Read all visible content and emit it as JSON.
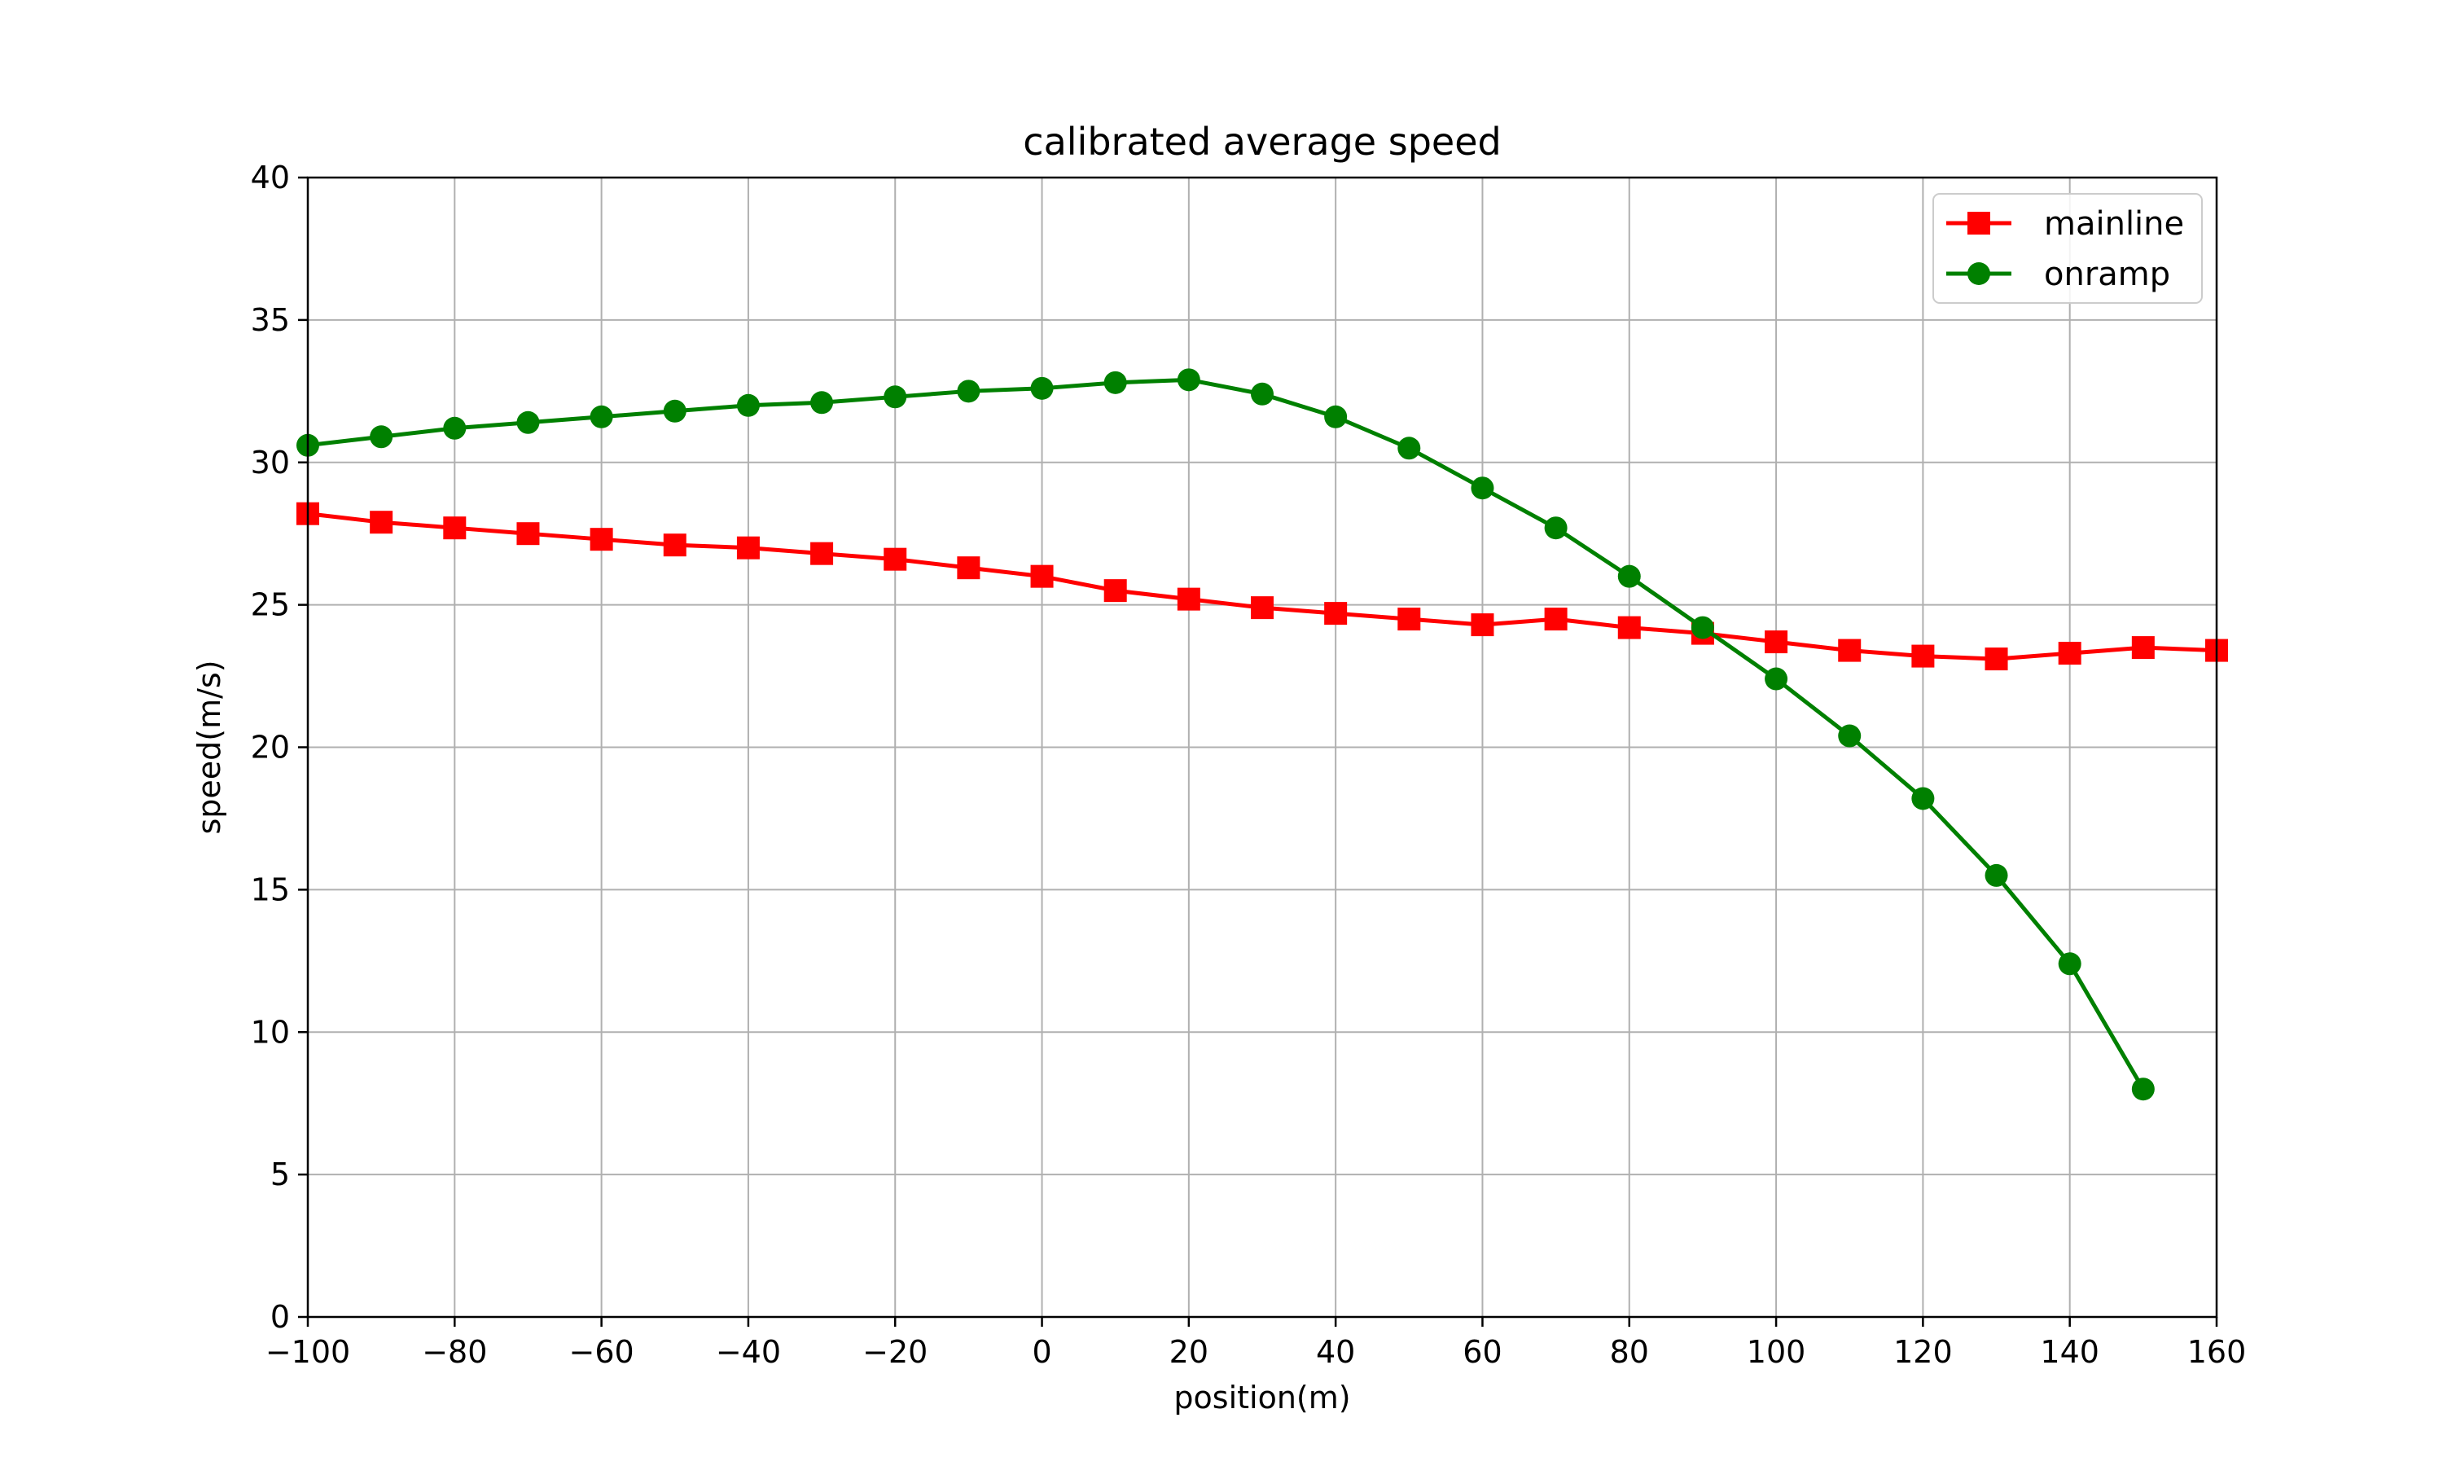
{
  "chart_data": {
    "type": "line",
    "title": "calibrated average speed",
    "xlabel": "position(m)",
    "ylabel": "speed(m/s)",
    "xlim": [
      -100,
      160
    ],
    "ylim": [
      0,
      40
    ],
    "xticks": [
      -100,
      -80,
      -60,
      -40,
      -20,
      0,
      20,
      40,
      60,
      80,
      100,
      120,
      140,
      160
    ],
    "xtick_labels": [
      "−100",
      "−80",
      "−60",
      "−40",
      "−20",
      "0",
      "20",
      "40",
      "60",
      "80",
      "100",
      "120",
      "140",
      "160"
    ],
    "yticks": [
      0,
      5,
      10,
      15,
      20,
      25,
      30,
      35,
      40
    ],
    "ytick_labels": [
      "0",
      "5",
      "10",
      "15",
      "20",
      "25",
      "30",
      "35",
      "40"
    ],
    "grid": true,
    "legend_position": "top-right",
    "series": [
      {
        "name": "mainline",
        "color": "#ff0000",
        "marker": "square",
        "x": [
          -100,
          -90,
          -80,
          -70,
          -60,
          -50,
          -40,
          -30,
          -20,
          -10,
          0,
          10,
          20,
          30,
          40,
          50,
          60,
          70,
          80,
          90,
          100,
          110,
          120,
          130,
          140,
          150,
          160
        ],
        "values": [
          28.2,
          27.9,
          27.7,
          27.5,
          27.3,
          27.1,
          27.0,
          26.8,
          26.6,
          26.3,
          26.0,
          25.5,
          25.2,
          24.9,
          24.7,
          24.5,
          24.3,
          24.5,
          24.2,
          24.0,
          23.7,
          23.4,
          23.2,
          23.1,
          23.3,
          23.5,
          23.4
        ]
      },
      {
        "name": "onramp",
        "color": "#008000",
        "marker": "circle",
        "x": [
          -100,
          -90,
          -80,
          -70,
          -60,
          -50,
          -40,
          -30,
          -20,
          -10,
          0,
          10,
          20,
          30,
          40,
          50,
          60,
          70,
          80,
          90,
          100,
          110,
          120,
          130,
          140,
          150
        ],
        "values": [
          30.6,
          30.9,
          31.2,
          31.4,
          31.6,
          31.8,
          32.0,
          32.1,
          32.3,
          32.5,
          32.6,
          32.8,
          32.9,
          32.4,
          31.6,
          30.5,
          29.1,
          27.7,
          26.0,
          24.2,
          22.4,
          20.4,
          18.2,
          15.5,
          12.4,
          8.0
        ]
      }
    ]
  }
}
